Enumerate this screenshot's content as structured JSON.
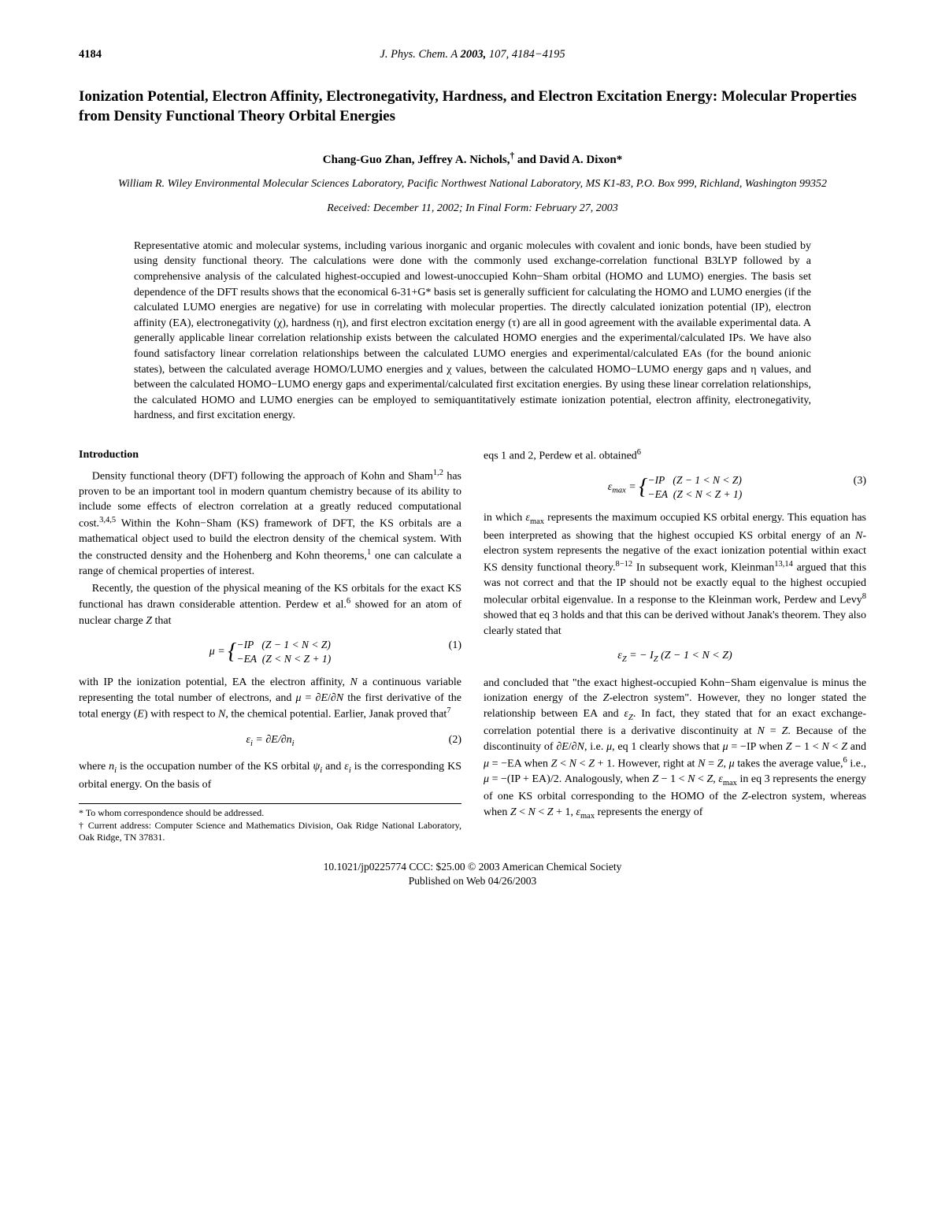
{
  "header": {
    "page_number": "4184",
    "journal_line": "J. Phys. Chem. A 2003, 107, 4184−4195"
  },
  "title": "Ionization Potential, Electron Affinity, Electronegativity, Hardness, and Electron Excitation Energy:  Molecular Properties from Density Functional Theory Orbital Energies",
  "authors": "Chang-Guo Zhan, Jeffrey A. Nichols,† and David A. Dixon*",
  "affiliation": "William R. Wiley Environmental Molecular Sciences Laboratory, Pacific Northwest National Laboratory, MS K1-83, P.O. Box 999, Richland, Washington 99352",
  "dates": "Received: December 11, 2002; In Final Form: February 27, 2003",
  "abstract": "Representative atomic and molecular systems, including various inorganic and organic molecules with covalent and ionic bonds, have been studied by using density functional theory. The calculations were done with the commonly used exchange-correlation functional B3LYP followed by a comprehensive analysis of the calculated highest-occupied and lowest-unoccupied Kohn−Sham orbital (HOMO and LUMO) energies. The basis set dependence of the DFT results shows that the economical 6-31+G* basis set is generally sufficient for calculating the HOMO and LUMO energies (if the calculated LUMO energies are negative) for use in correlating with molecular properties. The directly calculated ionization potential (IP), electron affinity (EA), electronegativity (χ), hardness (η), and first electron excitation energy (τ) are all in good agreement with the available experimental data. A generally applicable linear correlation relationship exists between the calculated HOMO energies and the experimental/calculated IPs. We have also found satisfactory linear correlation relationships between the calculated LUMO energies and experimental/calculated EAs (for the bound anionic states), between the calculated average HOMO/LUMO energies and χ values, between the calculated HOMO−LUMO energy gaps and η values, and between the calculated HOMO−LUMO energy gaps and experimental/calculated first excitation energies. By using these linear correlation relationships, the calculated HOMO and LUMO energies can be employed to semiquantitatively estimate ionization potential, electron affinity, electronegativity, hardness, and first excitation energy.",
  "col1": {
    "heading": "Introduction",
    "p1": "Density functional theory (DFT) following the approach of Kohn and Sham1,2 has proven to be an important tool in modern quantum chemistry because of its ability to include some effects of electron correlation at a greatly reduced computational cost.3,4,5 Within the Kohn−Sham (KS) framework of DFT, the KS orbitals are a mathematical object used to build the electron density of the chemical system. With the constructed density and the Hohenberg and Kohn theorems,1 one can calculate a range of chemical properties of interest.",
    "p2": "Recently, the question of the physical meaning of the KS orbitals for the exact KS functional has drawn considerable attention. Perdew et al.6 showed for an atom of nuclear charge Z that",
    "eq1_lhs": "μ = ",
    "eq1_case1": "−IP    (Z − 1 < N < Z)",
    "eq1_case2": "−EA   (Z < N < Z + 1)",
    "eq1_num": "(1)",
    "p3": "with IP the ionization potential, EA the electron affinity, N a continuous variable representing the total number of electrons, and μ = ∂E/∂N the first derivative of the total energy (E) with respect to N, the chemical potential. Earlier, Janak proved that7",
    "eq2": "εi = ∂E/∂ni",
    "eq2_num": "(2)",
    "p4": "where ni is the occupation number of the KS orbital ψi and εi is the corresponding KS orbital energy. On the basis of",
    "fn1": "* To whom correspondence should be addressed.",
    "fn2": "† Current address:  Computer Science and Mathematics Division, Oak Ridge National Laboratory, Oak Ridge, TN 37831."
  },
  "col2": {
    "p1": "eqs 1 and 2, Perdew et al. obtained6",
    "eq3_lhs": "εmax = ",
    "eq3_case1": "−IP    (Z − 1 < N < Z)",
    "eq3_case2": "−EA   (Z < N < Z + 1)",
    "eq3_num": "(3)",
    "p2": "in which εmax represents the maximum occupied KS orbital energy. This equation has been interpreted as showing that the highest occupied KS orbital energy of an N-electron system represents the negative of the exact ionization potential within exact KS density functional theory.8−12 In subsequent work, Kleinman13,14 argued that this was not correct and that the IP should not be exactly equal to the highest occupied molecular orbital eigenvalue. In a response to the Kleinman work, Perdew and Levy8 showed that eq 3 holds and that this can be derived without Janak's theorem. They also clearly stated that",
    "eq4": "εZ = − IZ (Z − 1 < N < Z)",
    "p3": "and concluded that \"the exact highest-occupied Kohn−Sham eigenvalue is minus the ionization energy of the Z-electron system\". However, they no longer stated the relationship between EA and εZ. In fact, they stated that for an exact exchange-correlation potential there is a derivative discontinuity at N = Z. Because of the discontinuity of ∂E/∂N, i.e. μ, eq 1 clearly shows that μ = −IP when Z − 1 < N < Z and μ = −EA when Z < N < Z + 1. However, right at N = Z, μ takes the average value,6 i.e., μ = −(IP + EA)/2. Analogously, when Z − 1 < N < Z, εmax in eq 3 represents the energy of one KS orbital corresponding to the HOMO of the Z-electron system, whereas when Z < N < Z + 1, εmax represents the energy of"
  },
  "footer": {
    "line1": "10.1021/jp0225774 CCC: $25.00    © 2003 American Chemical Society",
    "line2": "Published on Web 04/26/2003"
  }
}
